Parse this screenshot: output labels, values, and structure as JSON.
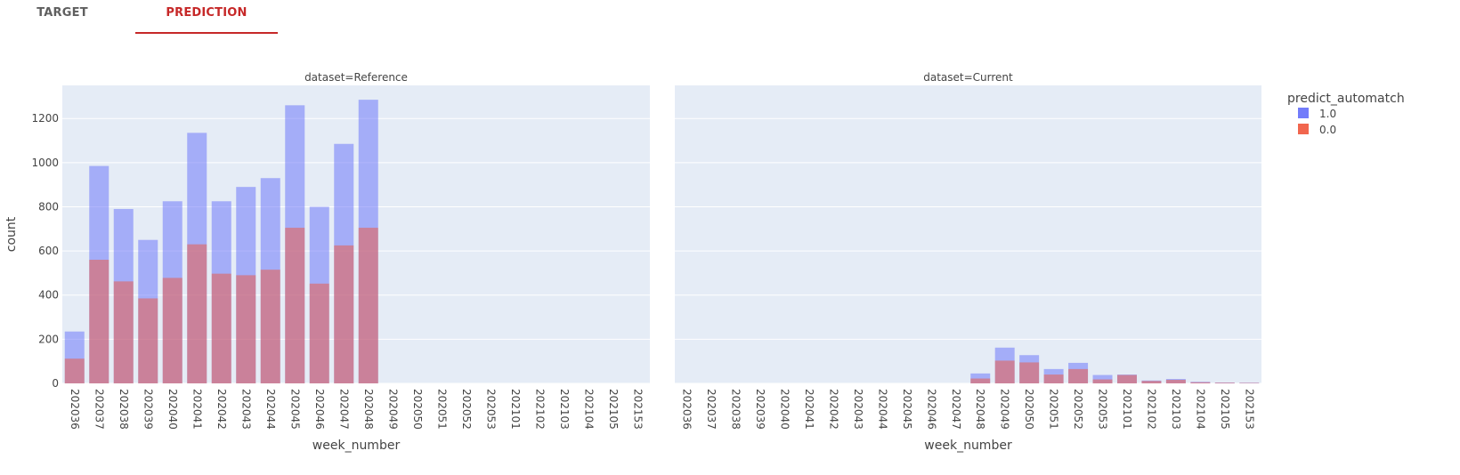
{
  "tabs": [
    {
      "label": "TARGET",
      "active": false
    },
    {
      "label": "PREDICTION",
      "active": true
    }
  ],
  "colors": {
    "series_1": "#636efa",
    "series_0": "#ef553b",
    "plot_bg": "#e5ecf6",
    "active_tab": "#c62828"
  },
  "chart_data": {
    "type": "bar",
    "barmode": "overlay",
    "bar_opacity": 0.5,
    "legend_title": "predict_automatch",
    "legend_placement": "top-right",
    "ylabel": "count",
    "ylim": [
      0,
      1350
    ],
    "yticks": [
      0,
      200,
      400,
      600,
      800,
      1000,
      1200
    ],
    "grid": true,
    "categories": [
      "202036",
      "202037",
      "202038",
      "202039",
      "202040",
      "202041",
      "202042",
      "202043",
      "202044",
      "202045",
      "202046",
      "202047",
      "202048",
      "202049",
      "202050",
      "202051",
      "202052",
      "202053",
      "202101",
      "202102",
      "202103",
      "202104",
      "202105",
      "202153"
    ],
    "panels": [
      {
        "title": "dataset=Reference",
        "xlabel": "week_number",
        "series": [
          {
            "name": "1.0",
            "values": [
              235,
              985,
              790,
              650,
              825,
              1135,
              825,
              890,
              930,
              1260,
              800,
              1085,
              1285,
              0,
              0,
              0,
              0,
              0,
              0,
              0,
              0,
              0,
              0,
              0
            ]
          },
          {
            "name": "0.0",
            "values": [
              112,
              560,
              462,
              385,
              478,
              630,
              497,
              490,
              515,
              705,
              452,
              625,
              705,
              0,
              0,
              0,
              0,
              0,
              0,
              0,
              0,
              0,
              0,
              0
            ]
          }
        ]
      },
      {
        "title": "dataset=Current",
        "xlabel": "week_number",
        "series": [
          {
            "name": "1.0",
            "values": [
              0,
              0,
              0,
              0,
              0,
              0,
              0,
              0,
              0,
              0,
              0,
              0,
              45,
              162,
              128,
              65,
              93,
              38,
              40,
              13,
              20,
              7,
              4,
              3
            ]
          },
          {
            "name": "0.0",
            "values": [
              0,
              0,
              0,
              0,
              0,
              0,
              0,
              0,
              0,
              0,
              0,
              0,
              22,
              103,
              95,
              40,
              65,
              18,
              38,
              11,
              16,
              5,
              3,
              2
            ]
          }
        ]
      }
    ]
  }
}
